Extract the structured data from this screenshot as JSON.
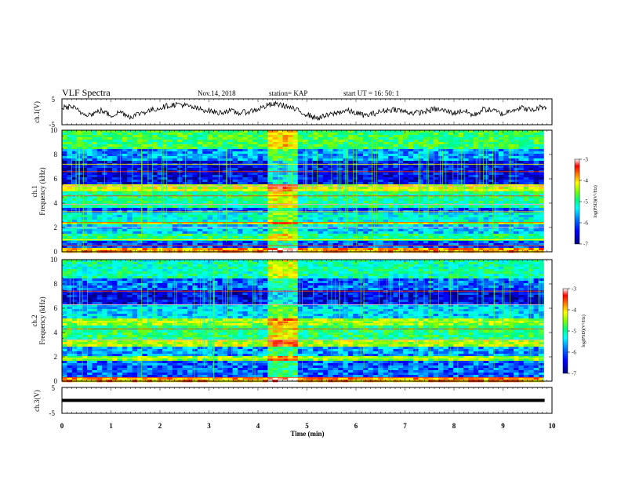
{
  "header": {
    "title": "VLF Spectra",
    "date": "Nov.14, 2018",
    "station": "station= KAP",
    "start_time": "start  UT =   16: 50: 1"
  },
  "chart_data": [
    {
      "type": "line",
      "ylabel": "ch.1(V)",
      "ylim": [
        -5,
        5
      ],
      "yticks": [
        "5",
        "-5"
      ],
      "x_range_min": [
        0,
        10
      ],
      "series": [
        {
          "name": "",
          "x": [
            0,
            0.2,
            0.4,
            0.6,
            0.8,
            1,
            1.2,
            1.4,
            1.6,
            1.8,
            2,
            2.2,
            2.4,
            2.6,
            2.8,
            3,
            3.2,
            3.4,
            3.6,
            3.8,
            4,
            4.2,
            4.4,
            4.6,
            4.8,
            5,
            5.2,
            5.4,
            5.6,
            5.8,
            6,
            6.2,
            6.4,
            6.6,
            6.8,
            7,
            7.2,
            7.4,
            7.6,
            7.8,
            8,
            8.2,
            8.4,
            8.6,
            8.8,
            9,
            9.2,
            9.4,
            9.6,
            9.8
          ],
          "values": [
            1.5,
            2.0,
            -0.5,
            -1.0,
            0.5,
            -1.5,
            0.0,
            -2.0,
            -0.5,
            0.5,
            1.5,
            2.5,
            3.0,
            2.0,
            1.0,
            0.5,
            -0.5,
            0.5,
            -0.5,
            0.0,
            1.0,
            2.5,
            3.0,
            2.0,
            0.5,
            -1.0,
            -2.5,
            -1.5,
            -0.5,
            0.5,
            -0.5,
            -1.5,
            -0.5,
            0.5,
            1.0,
            0.0,
            -0.5,
            0.0,
            1.0,
            0.5,
            -0.5,
            0.5,
            -1.5,
            1.0,
            0.5,
            -1.0,
            1.0,
            1.5,
            0.5,
            2.0
          ]
        }
      ]
    },
    {
      "type": "heatmap",
      "ylabel": "ch.1",
      "ylabel2": "Frequency  (kHz)",
      "ylim": [
        0,
        10
      ],
      "yticks": [
        "0",
        "2",
        "4",
        "6",
        "8",
        "10"
      ],
      "x_range_min": [
        0,
        9.83
      ],
      "bands": [
        {
          "f": [
            0,
            0.3
          ],
          "level": -4.0
        },
        {
          "f": [
            0.3,
            1.0
          ],
          "level": -6.3
        },
        {
          "f": [
            1.0,
            1.4
          ],
          "level": -5.2
        },
        {
          "f": [
            1.4,
            2.2
          ],
          "level": -5.8
        },
        {
          "f": [
            2.2,
            2.5
          ],
          "level": -4.6
        },
        {
          "f": [
            2.5,
            3.2
          ],
          "level": -5.6
        },
        {
          "f": [
            3.2,
            3.6
          ],
          "level": -6.3
        },
        {
          "f": [
            3.6,
            4.9
          ],
          "level": -5.3
        },
        {
          "f": [
            4.9,
            5.5
          ],
          "level": -4.5
        },
        {
          "f": [
            5.5,
            7.4
          ],
          "level": -6.6
        },
        {
          "f": [
            7.4,
            8.4
          ],
          "level": -6.0
        },
        {
          "f": [
            8.4,
            10.0
          ],
          "level": -5.1
        }
      ],
      "lines_khz": [
        0.5,
        1.0,
        2.0,
        2.4,
        3.3,
        3.9,
        4.6,
        5.1,
        5.4,
        6.6,
        7.2
      ],
      "burst_min": [
        4.22,
        4.8
      ],
      "colorbar": {
        "min": -7,
        "max": -3,
        "ticks": [
          "-3",
          "-4",
          "-5",
          "-6",
          "-7"
        ],
        "label": "log(PSD)(V²/Hz)"
      }
    },
    {
      "type": "heatmap",
      "ylabel": "ch.2",
      "ylabel2": "Frequency  (kHz)",
      "ylim": [
        0,
        10
      ],
      "yticks": [
        "0",
        "2",
        "4",
        "6",
        "8",
        "10"
      ],
      "x_range_min": [
        0,
        9.83
      ],
      "bands": [
        {
          "f": [
            0,
            0.4
          ],
          "level": -4.0
        },
        {
          "f": [
            0.4,
            1.6
          ],
          "level": -6.2
        },
        {
          "f": [
            1.6,
            2.1
          ],
          "level": -4.8
        },
        {
          "f": [
            2.1,
            2.9
          ],
          "level": -6.0
        },
        {
          "f": [
            2.9,
            3.5
          ],
          "level": -4.6
        },
        {
          "f": [
            3.5,
            4.6
          ],
          "level": -5.2
        },
        {
          "f": [
            4.6,
            5.2
          ],
          "level": -4.7
        },
        {
          "f": [
            5.2,
            6.4
          ],
          "level": -5.8
        },
        {
          "f": [
            6.4,
            7.5
          ],
          "level": -6.6
        },
        {
          "f": [
            7.5,
            8.5
          ],
          "level": -6.2
        },
        {
          "f": [
            8.5,
            10.0
          ],
          "level": -5.4
        }
      ],
      "lines_khz": [
        0.3,
        1.9,
        3.4,
        4.3,
        4.9,
        6.3,
        7.4
      ],
      "burst_min": [
        4.22,
        4.8
      ],
      "colorbar": {
        "min": -7,
        "max": -3,
        "ticks": [
          "-3",
          "-4",
          "-5",
          "-6",
          "-7"
        ],
        "label": "log(PSD)(V²/Hz)"
      }
    },
    {
      "type": "line",
      "ylabel": "ch.3(V)",
      "ylim": [
        -5,
        5
      ],
      "yticks": [
        "5",
        "-5"
      ],
      "x_range_min": [
        0,
        10
      ],
      "series": [
        {
          "name": "",
          "x": [
            0,
            9.85
          ],
          "values": [
            0,
            0
          ]
        }
      ]
    }
  ],
  "x_axis": {
    "label": "Time  (min)",
    "range": [
      0,
      10
    ],
    "ticks": [
      "0",
      "1",
      "2",
      "3",
      "4",
      "5",
      "6",
      "7",
      "8",
      "9",
      "10"
    ]
  },
  "colors": {
    "colormap": [
      "#000080",
      "#0000ff",
      "#0080ff",
      "#00ffff",
      "#00ff80",
      "#80ff00",
      "#ffff00",
      "#ff8000",
      "#ff0000",
      "#ffffff"
    ]
  }
}
